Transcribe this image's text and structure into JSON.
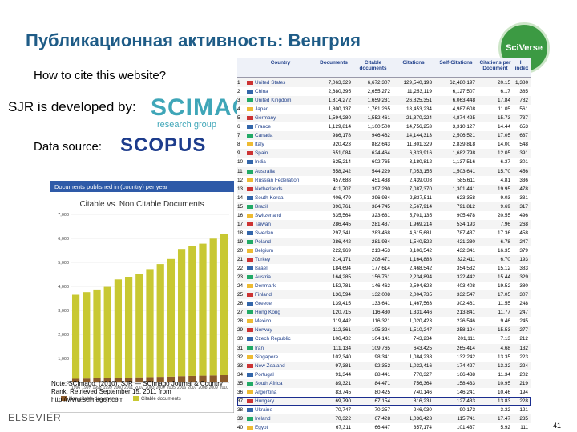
{
  "header": {
    "title": "Публикационная активность: Венгрия",
    "logo": "SciVerse"
  },
  "left": {
    "cite": "How to cite this website?",
    "sjr": "SJR is developed by:",
    "scimago": "SCIMAGO",
    "scimago_sub": "research group",
    "data_source": "Data source:",
    "scopus": "SCOPUS",
    "note": "Note: SCImago. (2010). SJR — SCImago Journal & Country Rank. Retrieved September 15, 2011 from http://www.scimagojr.com",
    "elsevier": "ELSEVIER",
    "page_number": "41"
  },
  "chart_data": {
    "type": "bar",
    "panel_title": "Documents published in (country) per year",
    "title": "Citable vs. Non Citable Documents",
    "categories": [
      "1996",
      "1997",
      "1998",
      "1999",
      "2000",
      "2001",
      "2002",
      "2003",
      "2004",
      "2005",
      "2006",
      "2007",
      "2008",
      "2009",
      "2010"
    ],
    "series": [
      {
        "name": "Non-citable documents",
        "color": "#8b5a2b",
        "values": [
          150,
          160,
          170,
          180,
          190,
          200,
          210,
          220,
          230,
          240,
          260,
          270,
          280,
          290,
          300
        ]
      },
      {
        "name": "Citable documents",
        "color": "#c8c832",
        "values": [
          3500,
          3600,
          3700,
          3800,
          4100,
          4200,
          4300,
          4500,
          4700,
          4900,
          5300,
          5400,
          5500,
          5700,
          5900
        ]
      }
    ],
    "ylim": [
      0,
      7000
    ],
    "yticks": [
      0,
      {
        "value": 1000,
        "label": "1,000"
      },
      {
        "value": 2000,
        "label": "2,000"
      },
      {
        "value": 3000,
        "label": "3,000"
      },
      {
        "value": 4000,
        "label": "4,000"
      },
      {
        "value": 5000,
        "label": "5,000"
      },
      {
        "value": 6000,
        "label": "6,000"
      },
      {
        "value": 7000,
        "label": "7,000"
      }
    ],
    "grid": true,
    "stacked": true
  },
  "table": {
    "columns": [
      "",
      "Country",
      "Documents",
      "Citable documents",
      "Citations",
      "Self-Citations",
      "Citations per Document",
      "H index"
    ],
    "highlight_row": 36,
    "rows": [
      [
        "1",
        "United States",
        "7,063,329",
        "6,672,307",
        "129,540,193",
        "62,480,197",
        "20.15",
        "1,380"
      ],
      [
        "2",
        "China",
        "2,680,395",
        "2,655,272",
        "11,253,119",
        "6,127,507",
        "6.17",
        "385"
      ],
      [
        "3",
        "United Kingdom",
        "1,814,272",
        "1,659,231",
        "26,825,351",
        "6,063,448",
        "17.84",
        "782"
      ],
      [
        "4",
        "Japan",
        "1,800,137",
        "1,761,265",
        "18,453,234",
        "4,987,608",
        "11.05",
        "561"
      ],
      [
        "5",
        "Germany",
        "1,594,280",
        "1,552,461",
        "21,370,224",
        "4,874,425",
        "15.73",
        "737"
      ],
      [
        "6",
        "France",
        "1,129,814",
        "1,100,500",
        "14,756,253",
        "3,310,127",
        "14.44",
        "653"
      ],
      [
        "7",
        "Canada",
        "986,178",
        "946,462",
        "14,144,313",
        "2,506,521",
        "17.05",
        "637"
      ],
      [
        "8",
        "Italy",
        "920,423",
        "882,643",
        "11,801,329",
        "2,839,818",
        "14.00",
        "548"
      ],
      [
        "9",
        "Spain",
        "651,084",
        "624,464",
        "6,833,916",
        "1,682,798",
        "12.05",
        "391"
      ],
      [
        "10",
        "India",
        "625,214",
        "602,765",
        "3,180,812",
        "1,137,516",
        "6.37",
        "301"
      ],
      [
        "11",
        "Australia",
        "558,242",
        "544,229",
        "7,053,155",
        "1,503,641",
        "15.70",
        "456"
      ],
      [
        "12",
        "Russian Federation",
        "457,688",
        "451,438",
        "2,439,003",
        "585,611",
        "4.81",
        "336"
      ],
      [
        "13",
        "Netherlands",
        "411,707",
        "397,230",
        "7,087,370",
        "1,301,441",
        "19.95",
        "478"
      ],
      [
        "14",
        "South Korea",
        "406,479",
        "396,934",
        "2,837,511",
        "623,358",
        "9.03",
        "331"
      ],
      [
        "15",
        "Brazil",
        "396,761",
        "384,745",
        "2,567,914",
        "791,812",
        "9.69",
        "317"
      ],
      [
        "16",
        "Switzerland",
        "335,564",
        "323,631",
        "5,701,135",
        "905,478",
        "20.55",
        "496"
      ],
      [
        "17",
        "Taiwan",
        "286,445",
        "281,437",
        "1,969,214",
        "534,193",
        "7.96",
        "268"
      ],
      [
        "18",
        "Sweden",
        "297,341",
        "283,468",
        "4,615,681",
        "787,437",
        "17.36",
        "458"
      ],
      [
        "19",
        "Poland",
        "286,442",
        "281,934",
        "1,540,522",
        "421,230",
        "6.78",
        "247"
      ],
      [
        "20",
        "Belgium",
        "222,969",
        "213,453",
        "3,106,542",
        "432,341",
        "16.35",
        "379"
      ],
      [
        "21",
        "Turkey",
        "214,171",
        "208,471",
        "1,164,883",
        "322,411",
        "6.70",
        "193"
      ],
      [
        "22",
        "Israel",
        "184,694",
        "177,614",
        "2,468,542",
        "354,532",
        "15.12",
        "383"
      ],
      [
        "23",
        "Austria",
        "164,285",
        "156,761",
        "2,234,894",
        "322,442",
        "15.44",
        "329"
      ],
      [
        "24",
        "Denmark",
        "152,781",
        "146,462",
        "2,594,623",
        "403,408",
        "19.52",
        "380"
      ],
      [
        "25",
        "Finland",
        "136,594",
        "132,008",
        "2,004,735",
        "332,547",
        "17.05",
        "307"
      ],
      [
        "26",
        "Greece",
        "139,415",
        "133,641",
        "1,467,563",
        "302,461",
        "11.55",
        "248"
      ],
      [
        "27",
        "Hong Kong",
        "120,715",
        "116,430",
        "1,331,446",
        "213,841",
        "11.77",
        "247"
      ],
      [
        "28",
        "Mexico",
        "119,442",
        "116,321",
        "1,020,423",
        "226,546",
        "9.46",
        "245"
      ],
      [
        "29",
        "Norway",
        "112,361",
        "105,324",
        "1,510,247",
        "258,124",
        "15.53",
        "277"
      ],
      [
        "30",
        "Czech Republic",
        "106,432",
        "104,141",
        "743,234",
        "201,111",
        "7.13",
        "212"
      ],
      [
        "31",
        "Iran",
        "111,134",
        "109,765",
        "643,425",
        "265,414",
        "4.68",
        "132"
      ],
      [
        "32",
        "Singapore",
        "102,340",
        "98,341",
        "1,084,238",
        "132,242",
        "13.35",
        "223"
      ],
      [
        "33",
        "New Zealand",
        "97,381",
        "92,352",
        "1,032,416",
        "174,427",
        "13.32",
        "224"
      ],
      [
        "34",
        "Portugal",
        "91,344",
        "88,441",
        "770,327",
        "166,438",
        "11.34",
        "202"
      ],
      [
        "35",
        "South Africa",
        "89,321",
        "84,471",
        "756,364",
        "158,433",
        "10.95",
        "219"
      ],
      [
        "36",
        "Argentina",
        "83,745",
        "80,425",
        "740,146",
        "146,241",
        "10.46",
        "194"
      ],
      [
        "37",
        "Hungary",
        "69,790",
        "67,154",
        "816,231",
        "127,433",
        "13.83",
        "228"
      ],
      [
        "38",
        "Ukraine",
        "70,747",
        "70,257",
        "246,030",
        "90,173",
        "3.32",
        "121"
      ],
      [
        "39",
        "Ireland",
        "70,322",
        "67,428",
        "1,036,423",
        "115,741",
        "17.47",
        "235"
      ],
      [
        "40",
        "Egypt",
        "67,311",
        "66,447",
        "357,174",
        "101,437",
        "5.92",
        "111"
      ]
    ]
  }
}
